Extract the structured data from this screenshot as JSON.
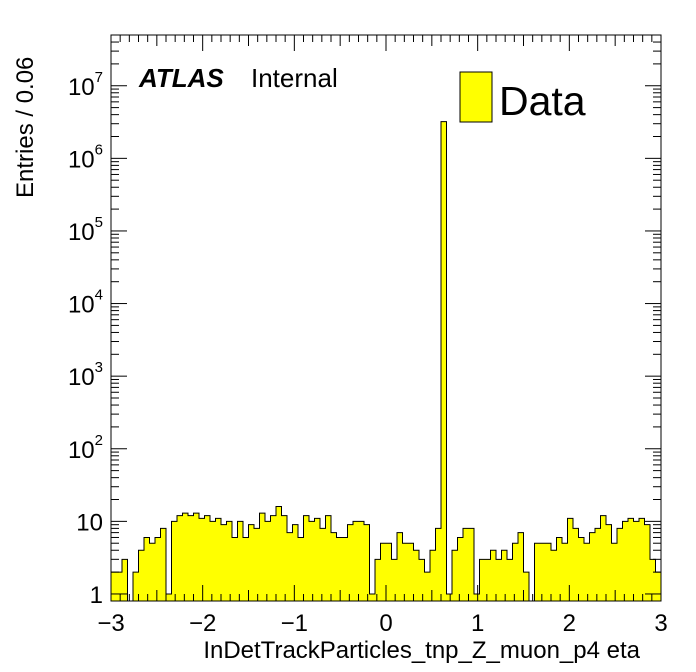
{
  "chart_data": {
    "type": "histogram",
    "xlabel": "InDetTrackParticles_tnp_Z_muon_p4 eta",
    "ylabel": "Entries / 0.06",
    "atlas_label": "ATLAS",
    "atlas_status": "Internal",
    "legend": [
      {
        "label": "Data",
        "color": "#ffff00"
      }
    ],
    "legend_placement": "top-right",
    "fill_color": "#ffff00",
    "line_color": "#000000",
    "xlim": [
      -3,
      3
    ],
    "ylim": [
      0.8,
      50000000
    ],
    "y_scale": "log",
    "bin_width": 0.06,
    "x_ticks": [
      {
        "value": -3,
        "label": "−3"
      },
      {
        "value": -2,
        "label": "−2"
      },
      {
        "value": -1,
        "label": "−1"
      },
      {
        "value": 0,
        "label": "0"
      },
      {
        "value": 1,
        "label": "1"
      },
      {
        "value": 2,
        "label": "2"
      },
      {
        "value": 3,
        "label": "3"
      }
    ],
    "y_ticks": [
      {
        "value": 1,
        "base": "1",
        "exp": ""
      },
      {
        "value": 10,
        "base": "10",
        "exp": ""
      },
      {
        "value": 100,
        "base": "10",
        "exp": "2"
      },
      {
        "value": 1000,
        "base": "10",
        "exp": "3"
      },
      {
        "value": 10000,
        "base": "10",
        "exp": "4"
      },
      {
        "value": 100000,
        "base": "10",
        "exp": "5"
      },
      {
        "value": 1000000,
        "base": "10",
        "exp": "6"
      },
      {
        "value": 10000000,
        "base": "10",
        "exp": "7"
      }
    ],
    "counts": [
      2,
      2,
      3,
      0,
      2,
      4,
      6,
      5,
      6,
      8,
      1,
      10,
      12,
      13,
      12,
      13,
      11,
      12,
      10,
      11,
      9,
      10,
      6,
      10,
      6,
      9,
      8,
      13,
      10,
      12,
      16,
      12,
      7,
      9,
      6,
      12,
      10,
      11,
      8,
      12,
      7,
      6,
      6,
      9,
      10,
      10,
      9,
      1,
      3,
      5,
      5,
      3,
      7,
      5,
      5,
      4,
      3,
      2,
      4,
      8,
      3200000,
      1,
      4,
      6,
      8,
      8,
      1,
      3,
      3,
      4,
      3,
      4,
      3,
      5,
      7,
      2,
      0,
      5,
      5,
      5,
      4,
      6,
      5,
      11,
      8,
      6,
      5,
      7,
      8,
      12,
      9,
      5,
      8,
      10,
      11,
      10,
      11,
      9,
      3,
      2
    ]
  }
}
